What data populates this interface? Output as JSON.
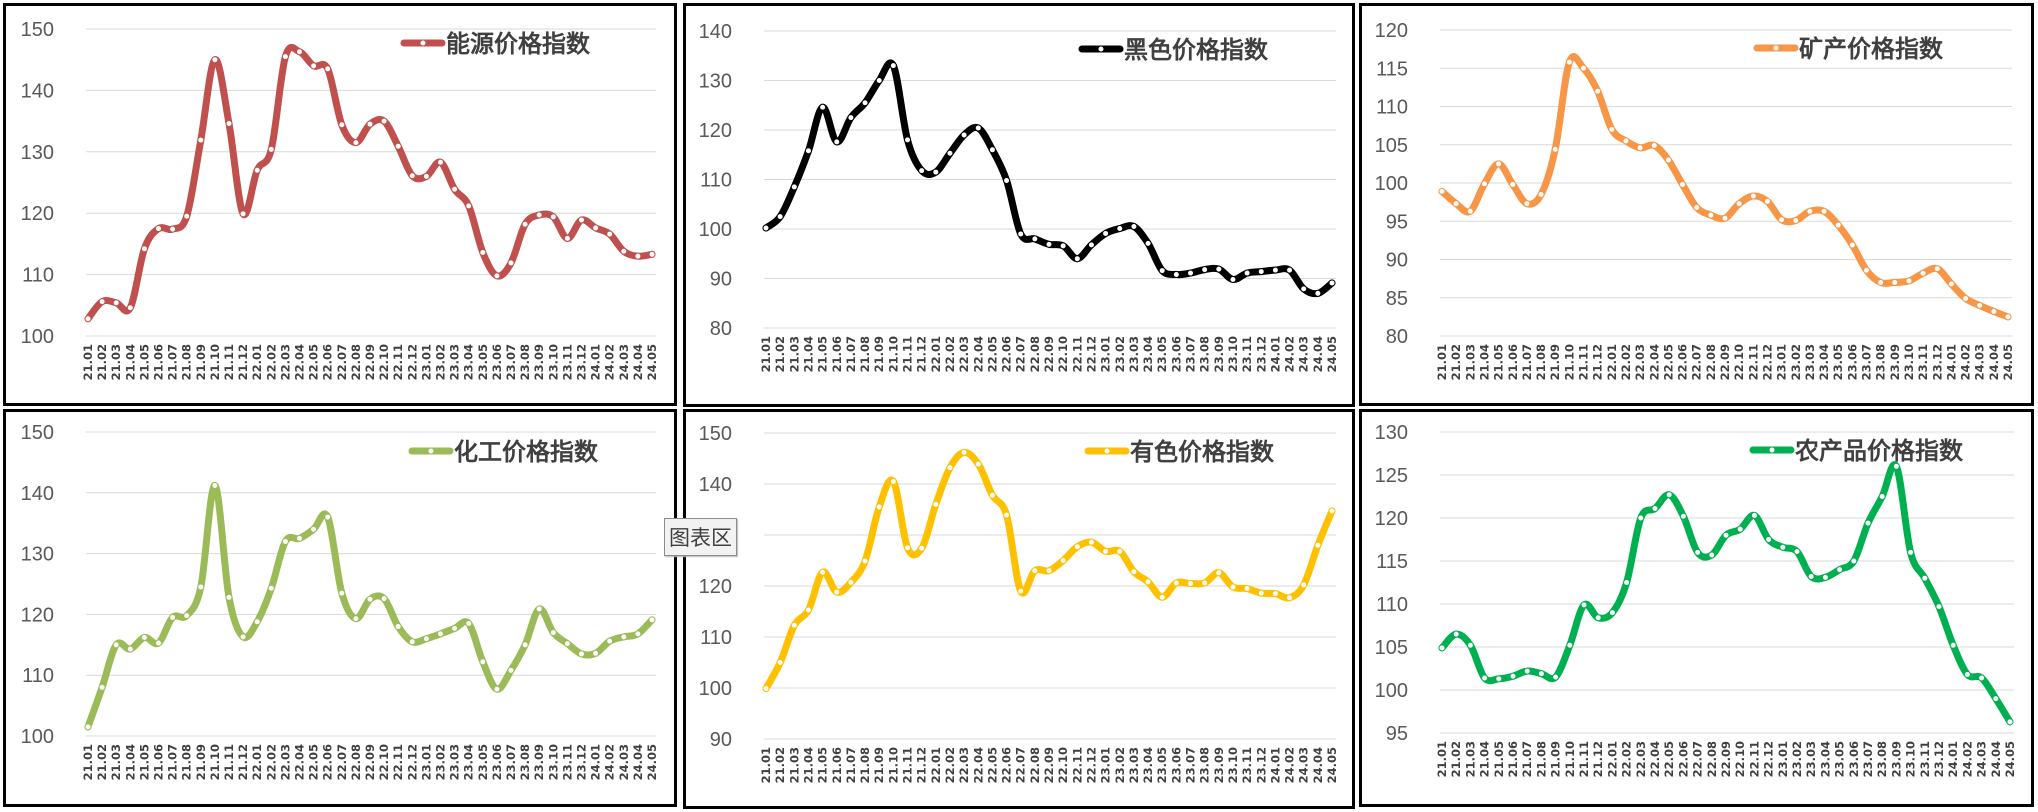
{
  "tooltip": "图表区",
  "categories": [
    "21.01",
    "21.02",
    "21.03",
    "21.04",
    "21.05",
    "21.06",
    "21.07",
    "21.08",
    "21.09",
    "21.10",
    "21.11",
    "21.12",
    "22.01",
    "22.02",
    "22.03",
    "22.04",
    "22.05",
    "22.06",
    "22.07",
    "22.08",
    "22.09",
    "22.10",
    "22.11",
    "22.12",
    "23.01",
    "23.02",
    "23.03",
    "23.04",
    "23.05",
    "23.06",
    "23.07",
    "23.08",
    "23.09",
    "23.10",
    "23.11",
    "23.12",
    "24.01",
    "24.02",
    "24.03",
    "24.04",
    "24.05"
  ],
  "chart_data": [
    {
      "type": "line",
      "series": [
        {
          "name": "能源价格指数",
          "color": "#c0504d",
          "values": [
            102.8,
            105.6,
            105.4,
            104.6,
            114.2,
            117.5,
            117.4,
            119.5,
            131.9,
            145.0,
            134.6,
            119.9,
            127.0,
            130.4,
            145.5,
            146.3,
            144.0,
            143.5,
            134.4,
            131.5,
            134.5,
            135.0,
            130.9,
            126.1,
            126.0,
            128.3,
            123.9,
            121.2,
            113.6,
            109.8,
            111.9,
            118.2,
            119.7,
            119.4,
            115.9,
            118.9,
            117.6,
            116.6,
            113.8,
            113.0,
            113.3
          ]
        }
      ],
      "ylim": [
        100,
        150
      ],
      "yticks": [
        100,
        110,
        120,
        130,
        140,
        150
      ]
    },
    {
      "type": "line",
      "series": [
        {
          "name": "黑色价格指数",
          "color": "#000000",
          "values": [
            100.2,
            102.5,
            108.5,
            115.8,
            124.6,
            117.6,
            122.5,
            125.5,
            130.0,
            133.0,
            118.0,
            111.8,
            111.5,
            115.3,
            119.0,
            120.4,
            116.0,
            109.8,
            99.0,
            98.0,
            96.9,
            96.6,
            94.0,
            96.8,
            99.1,
            100.1,
            100.5,
            97.1,
            91.6,
            90.8,
            91.1,
            91.8,
            91.9,
            89.8,
            91.1,
            91.4,
            91.7,
            91.7,
            87.9,
            87.0,
            89.1
          ]
        }
      ],
      "ylim": [
        80,
        140
      ],
      "yticks": [
        80,
        90,
        100,
        110,
        120,
        130,
        140
      ]
    },
    {
      "type": "line",
      "series": [
        {
          "name": "矿产价格指数",
          "color": "#f79646",
          "values": [
            98.9,
            97.3,
            96.3,
            99.9,
            102.5,
            99.8,
            97.3,
            98.5,
            104.4,
            115.8,
            115.0,
            112.0,
            107.0,
            105.5,
            104.6,
            104.9,
            103.0,
            99.8,
            96.8,
            95.8,
            95.4,
            97.3,
            98.3,
            97.6,
            95.2,
            95.1,
            96.3,
            96.3,
            94.5,
            91.9,
            88.6,
            87.0,
            87.0,
            87.2,
            88.2,
            88.8,
            86.8,
            84.9,
            84.0,
            83.2,
            82.5
          ]
        }
      ],
      "ylim": [
        80,
        120
      ],
      "yticks": [
        80,
        85,
        90,
        95,
        100,
        105,
        110,
        115,
        120
      ]
    },
    {
      "type": "line",
      "series": [
        {
          "name": "化工价格指数",
          "color": "#9bbb59",
          "values": [
            101.5,
            108.0,
            115.0,
            114.3,
            116.2,
            115.3,
            119.5,
            119.8,
            124.5,
            141.2,
            122.8,
            116.3,
            118.8,
            124.3,
            132.0,
            132.5,
            134.0,
            136.0,
            123.5,
            119.3,
            122.5,
            122.6,
            118.0,
            115.5,
            116.0,
            116.8,
            117.7,
            118.5,
            112.2,
            107.7,
            110.8,
            115.0,
            120.9,
            117.0,
            115.2,
            113.5,
            113.6,
            115.6,
            116.3,
            116.8,
            119.1
          ]
        }
      ],
      "ylim": [
        100,
        150
      ],
      "yticks": [
        100,
        110,
        120,
        130,
        140,
        150
      ]
    },
    {
      "type": "line",
      "series": [
        {
          "name": "有色价格指数",
          "color": "#ffc000",
          "values": [
            99.9,
            105.0,
            112.3,
            115.3,
            122.7,
            118.8,
            120.7,
            124.9,
            135.5,
            140.5,
            127.5,
            127.4,
            136.0,
            143.2,
            146.2,
            143.9,
            137.8,
            133.9,
            119.0,
            123.0,
            123.0,
            125.0,
            127.7,
            128.6,
            126.8,
            126.8,
            122.8,
            120.8,
            117.8,
            120.6,
            120.5,
            120.6,
            122.6,
            119.8,
            119.5,
            118.6,
            118.5,
            117.7,
            120.2,
            128.0,
            134.7
          ]
        }
      ],
      "ylim": [
        90,
        150
      ],
      "yticks": [
        90,
        100,
        110,
        120,
        130,
        140,
        150
      ]
    },
    {
      "type": "line",
      "series": [
        {
          "name": "农产品价格指数",
          "color": "#00b050",
          "values": [
            104.9,
            106.5,
            105.2,
            101.4,
            101.3,
            101.6,
            102.2,
            101.9,
            101.5,
            105.2,
            109.9,
            108.4,
            109.0,
            112.5,
            120.0,
            121.1,
            122.7,
            120.2,
            116.0,
            115.7,
            118.0,
            118.7,
            120.3,
            117.5,
            116.6,
            116.1,
            113.2,
            113.1,
            114.0,
            115.0,
            119.4,
            122.5,
            126.0,
            116.0,
            113.0,
            109.7,
            105.2,
            101.8,
            101.4,
            99.0,
            96.3
          ]
        }
      ],
      "ylim": [
        95,
        130
      ],
      "yticks": [
        95,
        100,
        105,
        110,
        115,
        120,
        125,
        130
      ]
    }
  ]
}
